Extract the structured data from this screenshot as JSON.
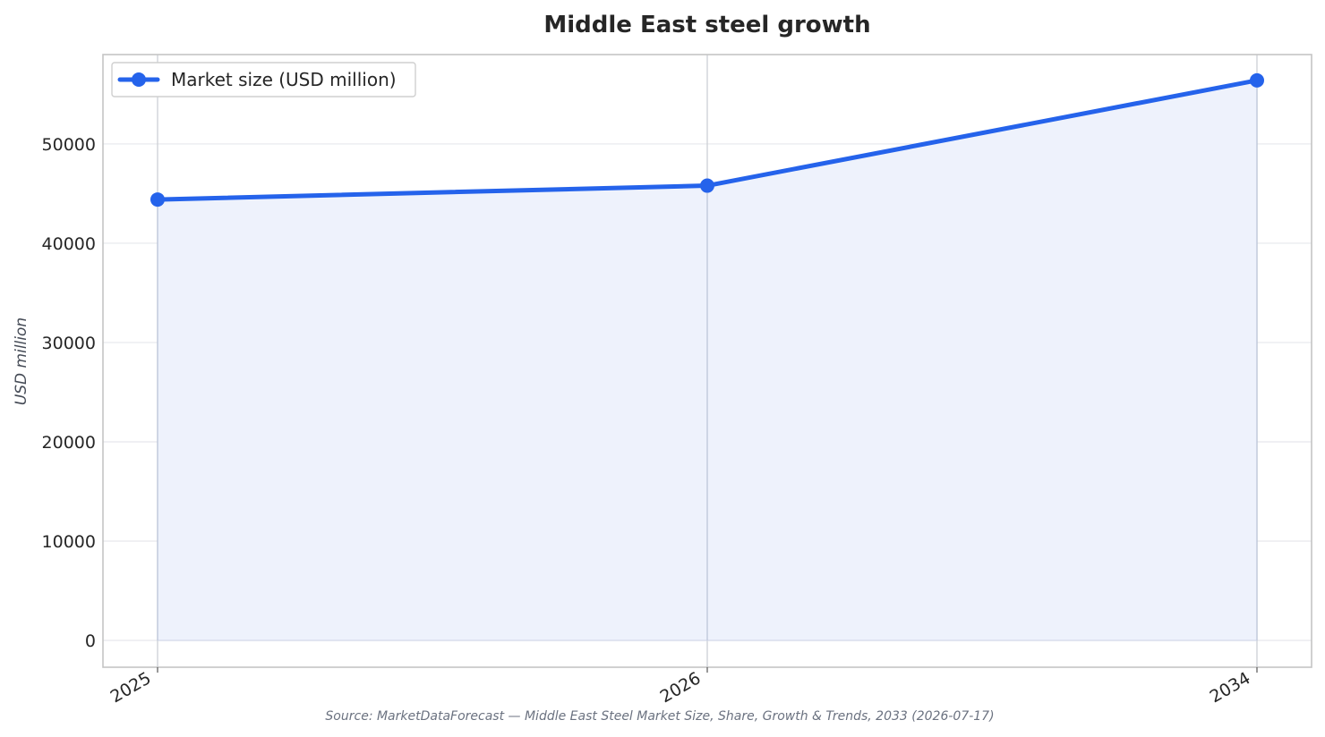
{
  "chart_data": {
    "type": "line",
    "title": "Middle East steel growth",
    "xlabel": "",
    "ylabel": "USD million",
    "categories": [
      "2025",
      "2026",
      "2034"
    ],
    "series": [
      {
        "name": "Market size (USD million)",
        "values": [
          44400,
          45800,
          56400
        ]
      }
    ],
    "yticks": [
      "0",
      "10000",
      "20000",
      "30000",
      "40000",
      "50000"
    ],
    "ylim": [
      -2700,
      59000
    ],
    "grid": true,
    "legend": "top-left",
    "source": "Source: MarketDataForecast — Middle East Steel Market Size, Share, Growth & Trends, 2033 (2026-07-17)",
    "colors": {
      "line": "#2563eb",
      "fill": "#eef2fc",
      "grid": "#e6e8ec",
      "frame": "#c4c4c4"
    }
  }
}
